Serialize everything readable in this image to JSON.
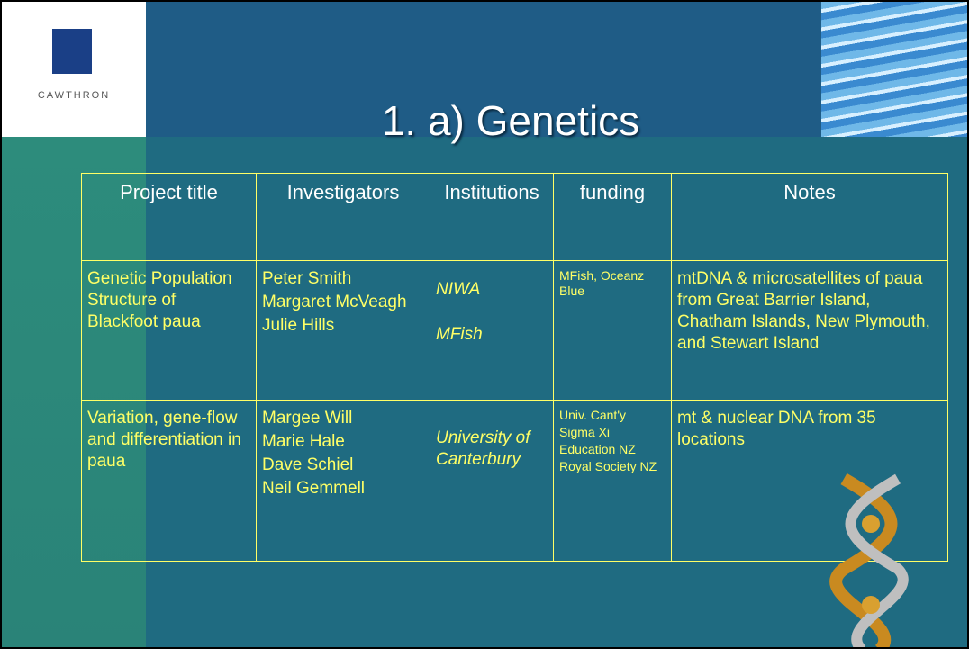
{
  "header": {
    "logo": "CAWTHRON",
    "title": "1. a) Genetics"
  },
  "table": {
    "columns": [
      "Project title",
      "Investigators",
      "Institutions",
      "funding",
      "Notes"
    ],
    "rows": [
      [
        [
          "Genetic Population Structure of Blackfoot paua"
        ],
        [
          "Peter Smith",
          "Margaret McVeagh",
          "Julie Hills"
        ],
        [
          "NIWA",
          "MFish"
        ],
        [
          "MFish, Oceanz Blue"
        ],
        [
          "mtDNA & microsatellites of paua from Great Barrier Island, Chatham Islands, New Plymouth, and Stewart Island"
        ]
      ],
      [
        [
          "Variation, gene-flow and differentiation in paua"
        ],
        [
          "Margee Will",
          "Marie Hale",
          "Dave Schiel",
          "Neil Gemmell"
        ],
        [
          "University of Canterbury"
        ],
        [
          "Univ. Cant'y",
          "Sigma Xi",
          "Education NZ",
          "Royal Society NZ"
        ],
        [
          "mt & nuclear DNA from 35 locations"
        ]
      ]
    ]
  }
}
